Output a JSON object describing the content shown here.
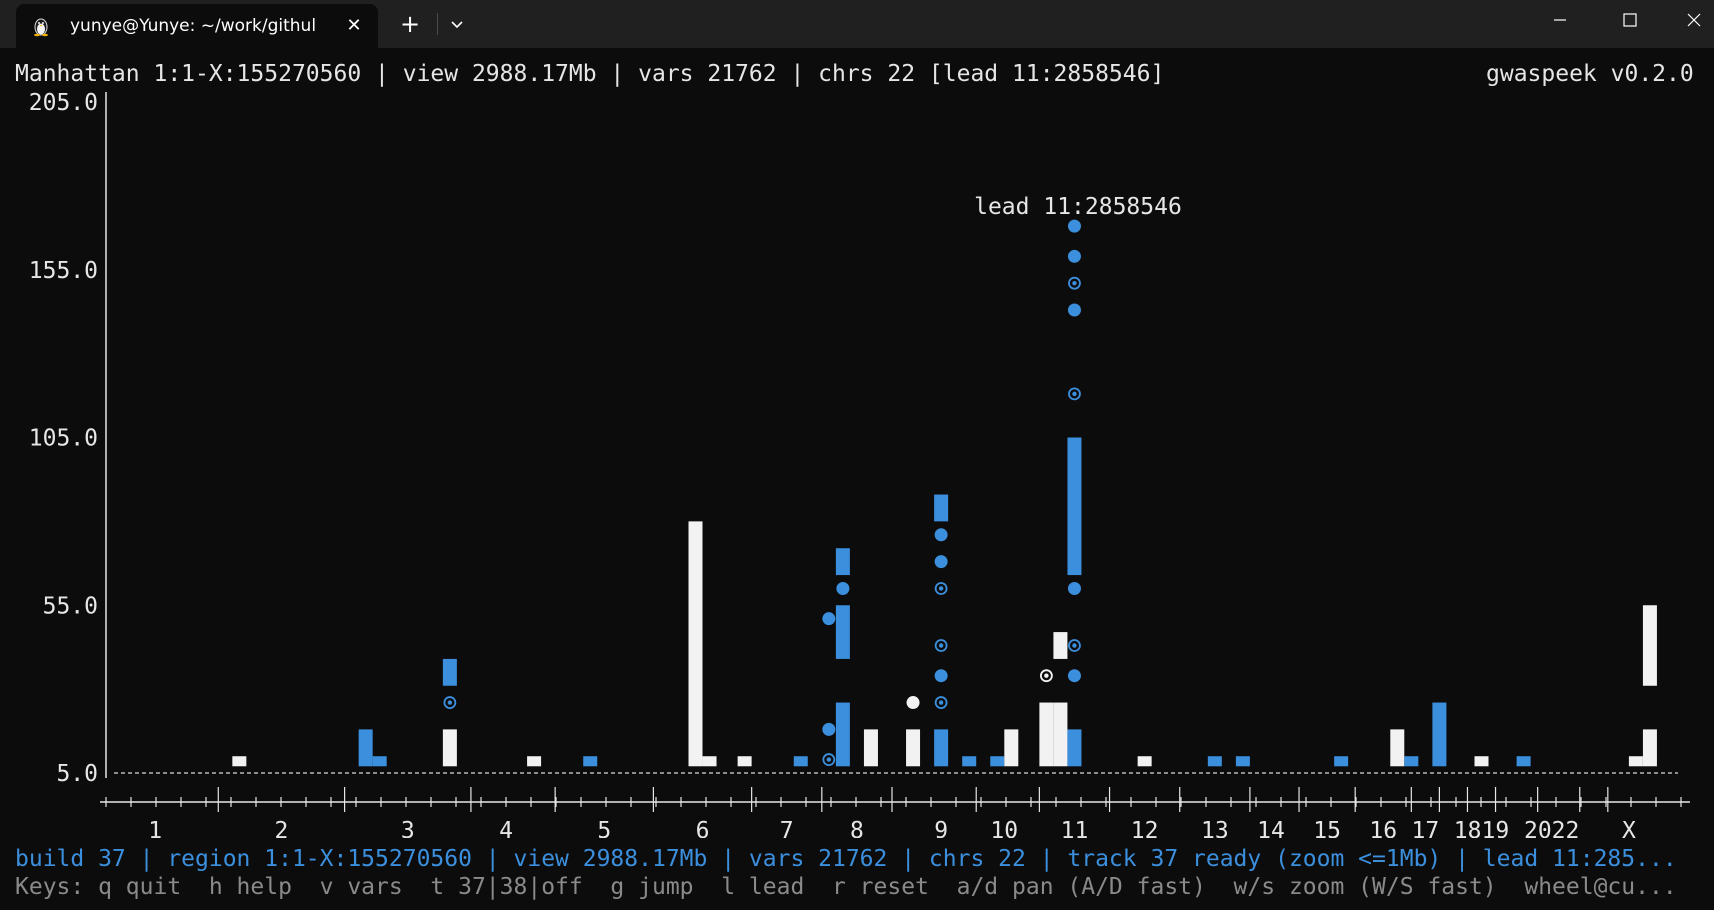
{
  "window": {
    "tab_title": "yunye@Yunye: ~/work/githul",
    "tab_icon": "linux-penguin-icon",
    "new_tab_icon": "plus-icon",
    "dropdown_icon": "chevron-down-icon",
    "tab_close_glyph": "✕",
    "new_tab_glyph": "+"
  },
  "header": {
    "text": "Manhattan 1:1-X:155270560 | view 2988.17Mb | vars 21762 | chrs 22 [lead 11:2858546]",
    "version": "gwaspeek v0.2.0"
  },
  "status": {
    "text": "build 37 | region 1:1-X:155270560 | view 2988.17Mb | vars 21762 | chrs 22 | track 37 ready (zoom <=1Mb) | lead 11:285..."
  },
  "keys": {
    "text": "Keys: q quit  h help  v vars  t 37|38|off  g jump  l lead  r reset  a/d pan (A/D fast)  w/s zoom (W/S fast)  wheel@cu..."
  },
  "colors": {
    "blue": "#3b8fdd",
    "white": "#f2f2f2",
    "status_blue": "#3b8fdd"
  },
  "chart_data": {
    "type": "scatter",
    "title": "Manhattan",
    "ylim": [
      5.0,
      205.0
    ],
    "yticks": [
      "205.0",
      "155.0",
      "105.0",
      "55.0",
      "5.0"
    ],
    "threshold_line": 5.0,
    "x_labels": [
      {
        "label": "1",
        "x": 1.5
      },
      {
        "label": "2",
        "x": 3.3
      },
      {
        "label": "3",
        "x": 5.1
      },
      {
        "label": "4",
        "x": 6.5
      },
      {
        "label": "5",
        "x": 7.9
      },
      {
        "label": "6",
        "x": 9.3
      },
      {
        "label": "7",
        "x": 10.5
      },
      {
        "label": "8",
        "x": 11.5
      },
      {
        "label": "9",
        "x": 12.7
      },
      {
        "label": "10",
        "x": 13.6
      },
      {
        "label": "11",
        "x": 14.6
      },
      {
        "label": "12",
        "x": 15.6
      },
      {
        "label": "13",
        "x": 16.6
      },
      {
        "label": "14",
        "x": 17.4
      },
      {
        "label": "15",
        "x": 18.2
      },
      {
        "label": "16",
        "x": 19.0
      },
      {
        "label": "17",
        "x": 19.6
      },
      {
        "label": "1819",
        "x": 20.4
      },
      {
        "label": "2022",
        "x": 21.4
      },
      {
        "label": "X",
        "x": 22.5
      }
    ],
    "annotation": {
      "text": "lead 11:2858546",
      "x": 14.65,
      "y": 174
    },
    "bars": [
      {
        "x": 2.7,
        "top": 10,
        "color": "white"
      },
      {
        "x": 4.5,
        "top": 18,
        "color": "blue"
      },
      {
        "x": 4.7,
        "top": 10,
        "color": "blue"
      },
      {
        "x": 5.7,
        "top": 18,
        "color": "white"
      },
      {
        "x": 5.7,
        "top": 39,
        "bottom": 31,
        "color": "blue"
      },
      {
        "x": 6.9,
        "top": 10,
        "color": "white"
      },
      {
        "x": 7.7,
        "top": 10,
        "color": "blue"
      },
      {
        "x": 9.2,
        "top": 80,
        "color": "white"
      },
      {
        "x": 9.4,
        "top": 10,
        "color": "white"
      },
      {
        "x": 9.9,
        "top": 10,
        "color": "white"
      },
      {
        "x": 10.7,
        "top": 10,
        "color": "blue"
      },
      {
        "x": 11.3,
        "top": 26,
        "color": "blue"
      },
      {
        "x": 11.3,
        "top": 55,
        "bottom": 39,
        "color": "blue"
      },
      {
        "x": 11.3,
        "top": 72,
        "bottom": 64,
        "color": "blue"
      },
      {
        "x": 11.7,
        "top": 18,
        "color": "white"
      },
      {
        "x": 12.3,
        "top": 18,
        "color": "white"
      },
      {
        "x": 12.7,
        "top": 18,
        "color": "blue"
      },
      {
        "x": 12.7,
        "top": 88,
        "bottom": 80,
        "color": "blue"
      },
      {
        "x": 13.1,
        "top": 10,
        "color": "blue"
      },
      {
        "x": 13.5,
        "top": 10,
        "color": "blue"
      },
      {
        "x": 13.7,
        "top": 18,
        "color": "white"
      },
      {
        "x": 14.2,
        "top": 26,
        "color": "white"
      },
      {
        "x": 14.4,
        "top": 26,
        "color": "white"
      },
      {
        "x": 14.4,
        "top": 47,
        "bottom": 39,
        "color": "white"
      },
      {
        "x": 14.6,
        "top": 18,
        "color": "blue"
      },
      {
        "x": 14.6,
        "top": 105,
        "bottom": 64,
        "color": "blue"
      },
      {
        "x": 15.6,
        "top": 10,
        "color": "white"
      },
      {
        "x": 16.6,
        "top": 10,
        "color": "blue"
      },
      {
        "x": 17.0,
        "top": 10,
        "color": "blue"
      },
      {
        "x": 18.4,
        "top": 10,
        "color": "blue"
      },
      {
        "x": 19.2,
        "top": 18,
        "color": "white"
      },
      {
        "x": 19.4,
        "top": 10,
        "color": "blue"
      },
      {
        "x": 19.8,
        "top": 26,
        "color": "blue"
      },
      {
        "x": 20.4,
        "top": 10,
        "color": "white"
      },
      {
        "x": 21.0,
        "top": 10,
        "color": "blue"
      },
      {
        "x": 22.6,
        "top": 10,
        "color": "white"
      },
      {
        "x": 22.8,
        "top": 18,
        "color": "white"
      },
      {
        "x": 22.8,
        "top": 55,
        "bottom": 31,
        "color": "white"
      }
    ],
    "points": [
      {
        "x": 5.7,
        "y": 26,
        "color": "blue",
        "style": "ring"
      },
      {
        "x": 11.1,
        "y": 51,
        "color": "blue",
        "style": "dot"
      },
      {
        "x": 11.3,
        "y": 60,
        "color": "blue",
        "style": "dot"
      },
      {
        "x": 11.1,
        "y": 18,
        "color": "blue",
        "style": "dot"
      },
      {
        "x": 11.1,
        "y": 9,
        "color": "blue",
        "style": "ring"
      },
      {
        "x": 12.3,
        "y": 26,
        "color": "white",
        "style": "dot"
      },
      {
        "x": 12.7,
        "y": 26,
        "color": "blue",
        "style": "ring"
      },
      {
        "x": 12.7,
        "y": 34,
        "color": "blue",
        "style": "dot"
      },
      {
        "x": 12.7,
        "y": 43,
        "color": "blue",
        "style": "ring"
      },
      {
        "x": 12.7,
        "y": 60,
        "color": "blue",
        "style": "ring"
      },
      {
        "x": 12.7,
        "y": 68,
        "color": "blue",
        "style": "dot"
      },
      {
        "x": 12.7,
        "y": 76,
        "color": "blue",
        "style": "dot"
      },
      {
        "x": 14.2,
        "y": 34,
        "color": "white",
        "style": "ring"
      },
      {
        "x": 14.6,
        "y": 34,
        "color": "blue",
        "style": "dot"
      },
      {
        "x": 14.6,
        "y": 43,
        "color": "blue",
        "style": "ring"
      },
      {
        "x": 14.6,
        "y": 60,
        "color": "blue",
        "style": "dot"
      },
      {
        "x": 14.6,
        "y": 118,
        "color": "blue",
        "style": "ring"
      },
      {
        "x": 14.6,
        "y": 143,
        "color": "blue",
        "style": "dot"
      },
      {
        "x": 14.6,
        "y": 151,
        "color": "blue",
        "style": "ring"
      },
      {
        "x": 14.6,
        "y": 159,
        "color": "blue",
        "style": "dot"
      },
      {
        "x": 14.6,
        "y": 168,
        "color": "blue",
        "style": "dot"
      }
    ]
  }
}
